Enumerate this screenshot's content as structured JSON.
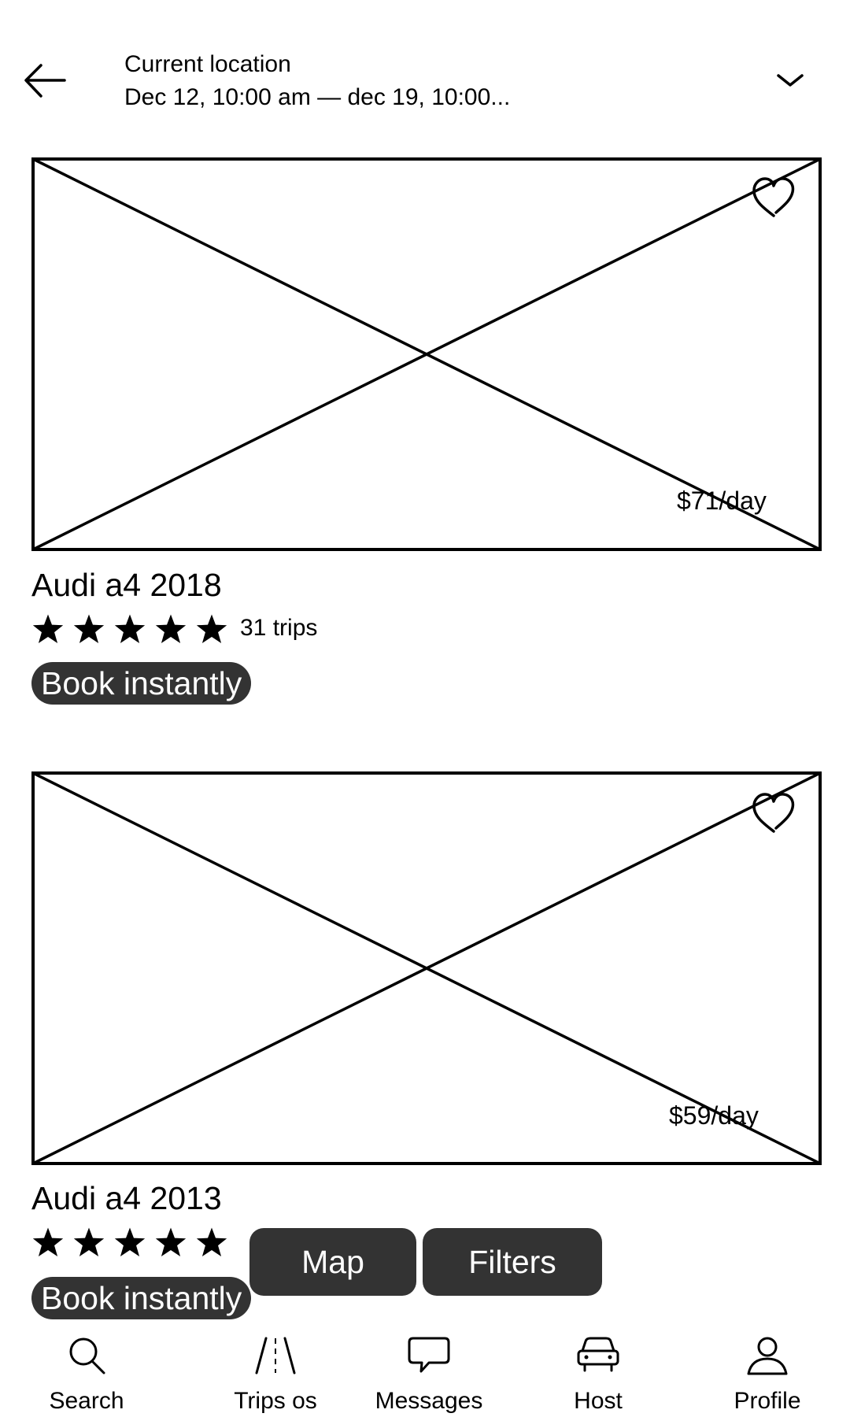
{
  "header": {
    "location_label": "Current location",
    "dates": "Dec 12, 10:00 am — dec 19, 10:00..."
  },
  "listings": [
    {
      "title": "Audi a4 2018",
      "price": "$71/day",
      "rating": 5,
      "trips": "31 trips",
      "badge": "Book instantly"
    },
    {
      "title": "Audi a4 2013",
      "price": "$59/day",
      "rating": 5,
      "badge": "Book instantly"
    }
  ],
  "actions": {
    "map": "Map",
    "filters": "Filters"
  },
  "nav": [
    {
      "label": "Search",
      "icon": "search-icon"
    },
    {
      "label": "Trips os",
      "icon": "road-icon"
    },
    {
      "label": "Messages",
      "icon": "chat-bubble-icon"
    },
    {
      "label": "Host",
      "icon": "car-icon"
    },
    {
      "label": "Profile",
      "icon": "person-icon"
    }
  ]
}
